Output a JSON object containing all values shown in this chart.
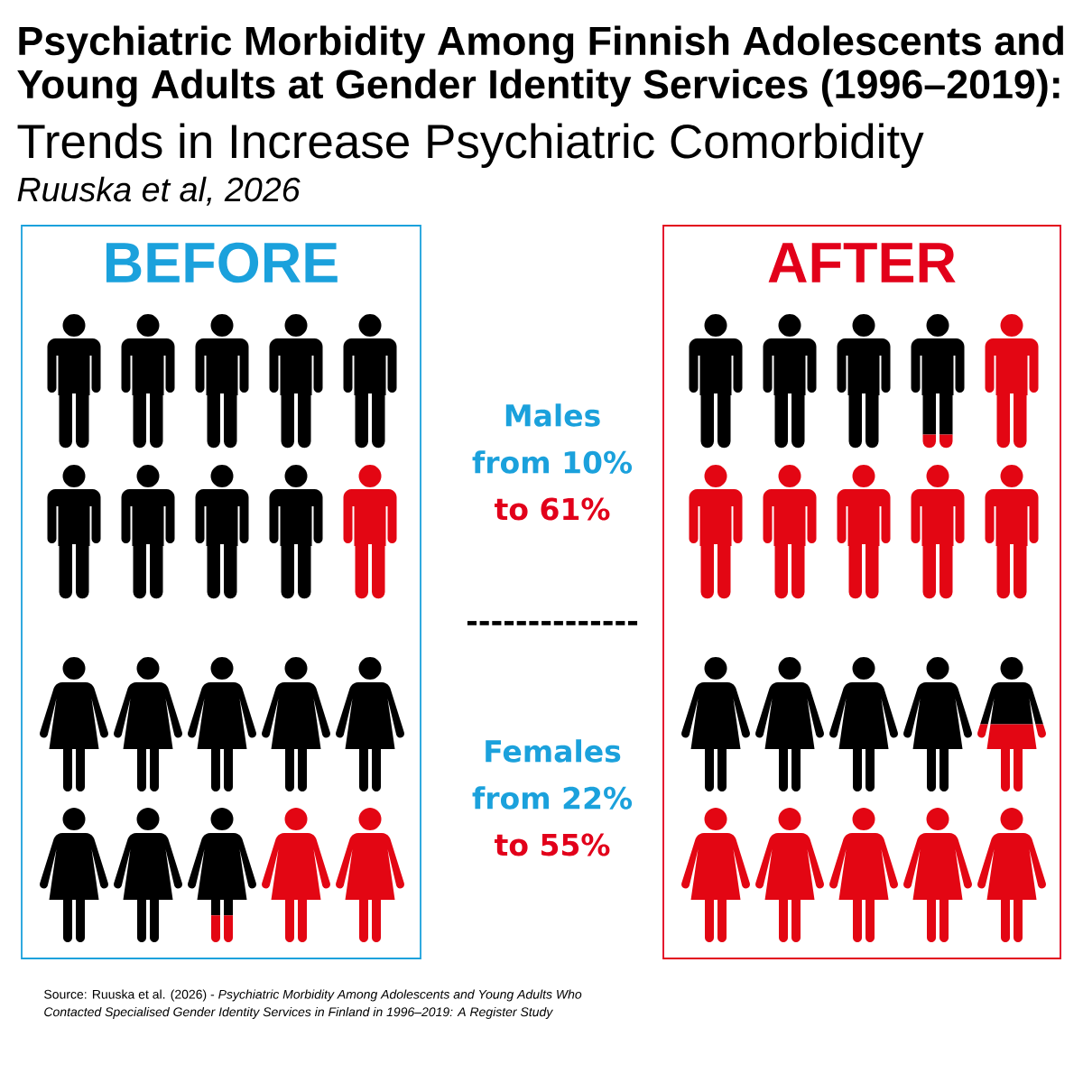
{
  "chart_data": {
    "type": "other",
    "title": "Psychiatric Morbidity Among Finnish Adolescents and Young Adults at Gender Identity Services (1996–2019):",
    "subtitle": "Trends in Increase Psychiatric Comorbidity",
    "categories": [
      "BEFORE",
      "AFTER"
    ],
    "series": [
      {
        "name": "Males",
        "values": [
          10,
          61
        ],
        "value_labels": [
          "from 10%",
          "to 61%"
        ]
      },
      {
        "name": "Females",
        "values": [
          22,
          55
        ],
        "value_labels": [
          "from 22%",
          "to 55%"
        ]
      }
    ],
    "annotations": [
      "Ruuska et al, 2026",
      "--------------",
      "Source: Ruuska et al. (2026) - *Psychiatric Morbidity Among Adolescents and Young Adults Who Contacted Specialised Gender Identity Services in Finland in 1996–2019: A Register Study*"
    ]
  }
}
